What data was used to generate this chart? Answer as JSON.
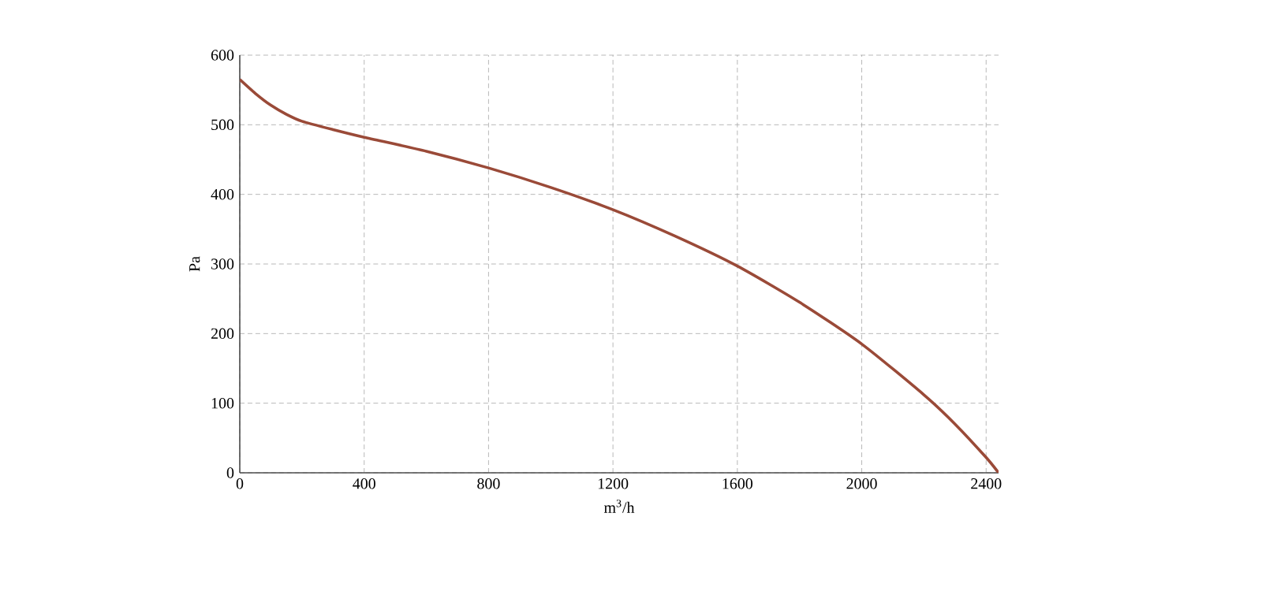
{
  "chart_data": {
    "type": "line",
    "xlabel": "m$^{3}$/h",
    "ylabel": "Pa",
    "x": [
      0,
      50,
      100,
      150,
      200,
      300,
      400,
      600,
      800,
      1000,
      1200,
      1400,
      1600,
      1800,
      2000,
      2200,
      2300,
      2400,
      2440
    ],
    "series": [
      {
        "color": "#9a4a38",
        "values": [
          565,
          545,
          528,
          515,
          505,
          493,
          482,
          462,
          438,
          410,
          378,
          340,
          297,
          245,
          185,
          112,
          70,
          22,
          0
        ]
      }
    ],
    "xlim": [
      0,
      2440
    ],
    "ylim": [
      0,
      600
    ],
    "xticks": [
      0,
      400,
      800,
      1200,
      1600,
      2000,
      2400
    ],
    "yticks": [
      0,
      100,
      200,
      300,
      400,
      500,
      600
    ],
    "grid": true,
    "marker": "none",
    "line_style": "solid"
  }
}
